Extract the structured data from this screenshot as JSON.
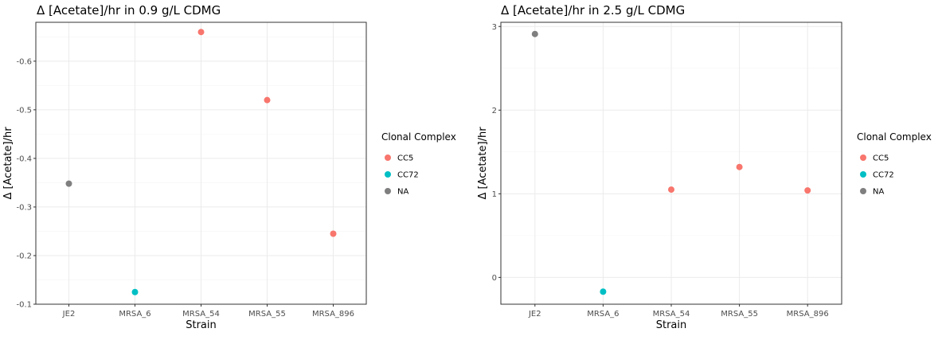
{
  "chart_data": [
    {
      "type": "scatter",
      "title": "Δ [Acetate]/hr in 0.9 g/L CDMG",
      "xlabel": "Strain",
      "ylabel": "Δ [Acetate]/hr",
      "categories": [
        "JE2",
        "MRSA_6",
        "MRSA_54",
        "MRSA_55",
        "MRSA_896"
      ],
      "y_ticks": [
        -0.1,
        -0.2,
        -0.3,
        -0.4,
        -0.5,
        -0.6
      ],
      "y_tick_labels": [
        "-0.1",
        "-0.2",
        "-0.3",
        "-0.4",
        "-0.5",
        "-0.6"
      ],
      "y_reversed": true,
      "ylim": [
        -0.1,
        -0.68
      ],
      "grid": true,
      "legend_position": "right",
      "legend_title": "Clonal Complex",
      "series": [
        {
          "name": "CC5",
          "color": "#F8766D",
          "points": [
            {
              "x": "MRSA_54",
              "y": -0.66
            },
            {
              "x": "MRSA_55",
              "y": -0.52
            },
            {
              "x": "MRSA_896",
              "y": -0.245
            }
          ]
        },
        {
          "name": "CC72",
          "color": "#00BFC4",
          "points": [
            {
              "x": "MRSA_6",
              "y": -0.125
            }
          ]
        },
        {
          "name": "NA",
          "color": "#7F7F7F",
          "points": [
            {
              "x": "JE2",
              "y": -0.348
            }
          ]
        }
      ]
    },
    {
      "type": "scatter",
      "title": "Δ [Acetate]/hr in 2.5 g/L CDMG",
      "xlabel": "Strain",
      "ylabel": "Δ [Acetate]/hr",
      "categories": [
        "JE2",
        "MRSA_6",
        "MRSA_54",
        "MRSA_55",
        "MRSA_896"
      ],
      "y_ticks": [
        0,
        1,
        2,
        3
      ],
      "y_tick_labels": [
        "0",
        "1",
        "2",
        "3"
      ],
      "y_reversed": false,
      "ylim": [
        -0.32,
        3.05
      ],
      "grid": true,
      "legend_position": "right",
      "legend_title": "Clonal Complex",
      "series": [
        {
          "name": "CC5",
          "color": "#F8766D",
          "points": [
            {
              "x": "MRSA_54",
              "y": 1.05
            },
            {
              "x": "MRSA_55",
              "y": 1.32
            },
            {
              "x": "MRSA_896",
              "y": 1.04
            }
          ]
        },
        {
          "name": "CC72",
          "color": "#00BFC4",
          "points": [
            {
              "x": "MRSA_6",
              "y": -0.17
            }
          ]
        },
        {
          "name": "NA",
          "color": "#7F7F7F",
          "points": [
            {
              "x": "JE2",
              "y": 2.91
            }
          ]
        }
      ]
    }
  ]
}
